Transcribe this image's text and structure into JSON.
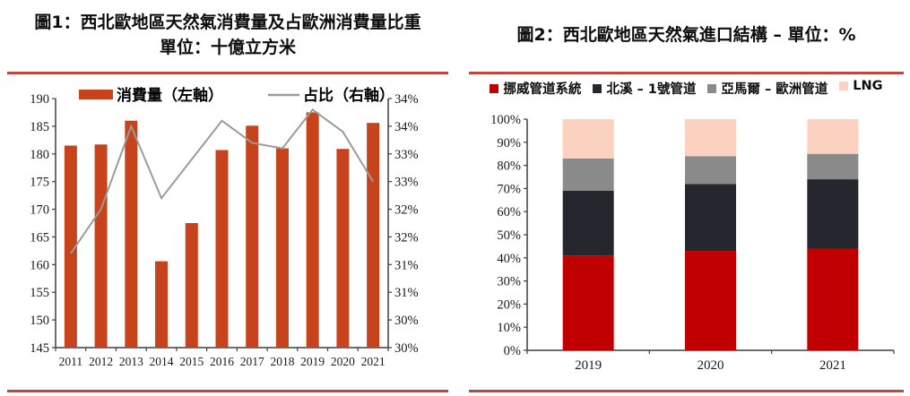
{
  "rules": {
    "color": "#C1473E"
  },
  "figures": [
    {
      "title": "圖1：西北歐地區天然氣消費量及占歐洲消費量比重",
      "subtitle": "單位：十億立方米"
    },
    {
      "title": "圖2：西北歐地區天然氣進口結構 – 單位：%"
    }
  ],
  "chart_data": [
    {
      "type": "bar",
      "subtype": "combo bar+line, dual axis",
      "title": "圖1：西北歐地區天然氣消費量及占歐洲消費量比重",
      "subtitle": "單位：十億立方米",
      "categories": [
        "2011",
        "2012",
        "2013",
        "2014",
        "2015",
        "2016",
        "2017",
        "2018",
        "2019",
        "2020",
        "2021"
      ],
      "series": [
        {
          "name": "消費量（左軸）",
          "type": "bar",
          "axis": "left",
          "color": "#C7431B",
          "values": [
            181.5,
            181.7,
            186.0,
            160.6,
            167.5,
            180.7,
            185.1,
            181.0,
            187.5,
            180.9,
            185.6
          ]
        },
        {
          "name": "占比（右軸）",
          "type": "line",
          "axis": "right",
          "color": "#9B9B9B",
          "values": [
            31.7,
            32.5,
            34.0,
            32.7,
            33.4,
            34.1,
            33.7,
            33.6,
            34.3,
            33.9,
            33.0
          ]
        }
      ],
      "left_axis": {
        "min": 145,
        "max": 190,
        "step": 5,
        "labels_bottom_to_top": [
          "145",
          "150",
          "155",
          "160",
          "165",
          "170",
          "175",
          "180",
          "185",
          "190"
        ]
      },
      "right_axis": {
        "min": 30,
        "max": 34.5,
        "step": 0.5,
        "labels_bottom_to_top": [
          "30%",
          "30%",
          "31%",
          "31%",
          "32%",
          "32%",
          "33%",
          "33%",
          "34%",
          "34%"
        ]
      },
      "legend_position": "top",
      "grid": false,
      "axis_color": "#3F3F3F"
    },
    {
      "type": "bar",
      "subtype": "stacked percentage bars",
      "title": "圖2：西北歐地區天然氣進口結構 – 單位：%",
      "categories": [
        "2019",
        "2020",
        "2021"
      ],
      "series": [
        {
          "name": "挪威管道系統",
          "color": "#C00000",
          "values": [
            41,
            43,
            44
          ]
        },
        {
          "name": "北溪 – 1號管道",
          "color": "#26262E",
          "values": [
            28,
            29,
            30
          ]
        },
        {
          "name": "亞馬爾 – 歐洲管道",
          "color": "#8A8A8A",
          "values": [
            14,
            12,
            11
          ]
        },
        {
          "name": "LNG",
          "color": "#FAD2BF",
          "values": [
            17,
            16,
            15
          ]
        }
      ],
      "y_axis": {
        "min": 0,
        "max": 100,
        "step": 10,
        "labels_bottom_to_top": [
          "0%",
          "10%",
          "20%",
          "30%",
          "40%",
          "50%",
          "60%",
          "70%",
          "80%",
          "90%",
          "100%"
        ]
      },
      "legend_position": "top",
      "grid": false,
      "axis_color": "#3F3F3F"
    }
  ]
}
